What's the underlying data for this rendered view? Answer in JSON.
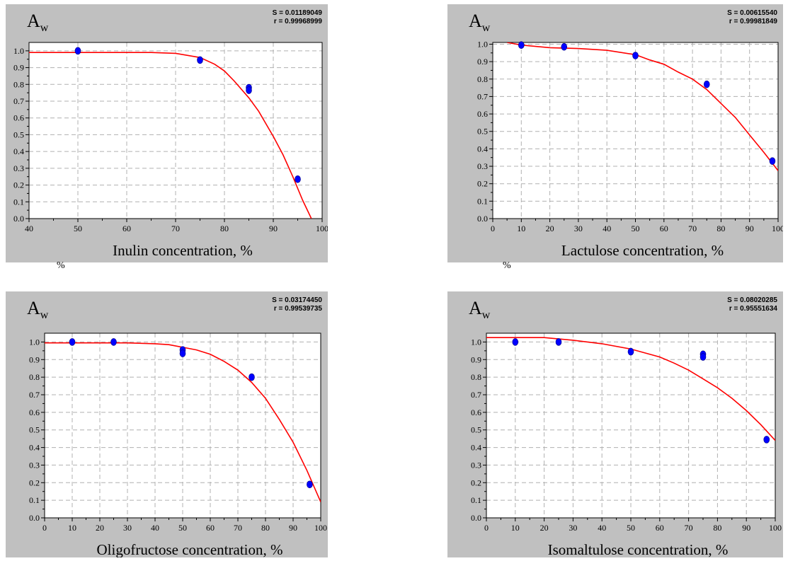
{
  "stray_marks": [
    "%",
    "%"
  ],
  "chart_data": [
    {
      "type": "scatter",
      "ylabel_main": "A",
      "ylabel_sub": "w",
      "xlabel": "Inulin concentration, %",
      "stats": [
        "S = 0.01189049",
        "r = 0.99968999"
      ],
      "xlim": [
        40,
        100
      ],
      "ylim": [
        0.0,
        1.05
      ],
      "xticks": [
        40,
        50,
        60,
        70,
        80,
        90,
        100
      ],
      "xminor": 2,
      "yticks": [
        0.0,
        0.1,
        0.2,
        0.3,
        0.4,
        0.5,
        0.6,
        0.7,
        0.8,
        0.9,
        1.0
      ],
      "ytick_labels": [
        "0.0",
        "0.1",
        "0.2",
        "0.3",
        "0.4",
        "0.5",
        "0.6",
        "0.7",
        "0.8",
        "0.9",
        "1.0"
      ],
      "grid": true,
      "series": [
        {
          "kind": "points",
          "x": [
            50,
            75,
            85,
            85,
            95
          ],
          "y": [
            1.0,
            0.945,
            0.78,
            0.765,
            0.235
          ]
        },
        {
          "kind": "fit",
          "x": [
            40,
            60,
            65,
            70,
            75,
            78,
            80,
            82,
            85,
            87,
            90,
            92,
            94,
            96,
            97.8
          ],
          "y": [
            0.99,
            0.99,
            0.99,
            0.985,
            0.96,
            0.92,
            0.88,
            0.82,
            0.72,
            0.64,
            0.49,
            0.38,
            0.25,
            0.11,
            0.0
          ]
        }
      ],
      "colors": {
        "points": "#0000ff",
        "fit": "#ff0000"
      }
    },
    {
      "type": "scatter",
      "ylabel_main": "A",
      "ylabel_sub": "w",
      "xlabel": "Lactulose concentration, %",
      "stats": [
        "S = 0.00615540",
        "r = 0.99981849"
      ],
      "xlim": [
        0,
        100
      ],
      "ylim": [
        0.0,
        1.01
      ],
      "xticks": [
        0,
        10,
        20,
        30,
        40,
        50,
        60,
        70,
        80,
        90,
        100
      ],
      "xminor": 2,
      "yticks": [
        0.0,
        0.1,
        0.2,
        0.3,
        0.4,
        0.5,
        0.6,
        0.7,
        0.8,
        0.9,
        1.0
      ],
      "ytick_labels": [
        "0.0",
        "0.1",
        "0.2",
        "0.3",
        "0.4",
        "0.5",
        "0.6",
        "0.7",
        "0.8",
        "0.9",
        "1.0"
      ],
      "grid": true,
      "series": [
        {
          "kind": "points",
          "x": [
            10,
            25,
            50,
            75,
            98
          ],
          "y": [
            0.995,
            0.985,
            0.935,
            0.77,
            0.33
          ]
        },
        {
          "kind": "fit",
          "x": [
            5,
            10,
            20,
            30,
            40,
            50,
            55,
            60,
            65,
            70,
            75,
            80,
            85,
            90,
            95,
            100
          ],
          "y": [
            1.01,
            0.995,
            0.98,
            0.975,
            0.965,
            0.94,
            0.91,
            0.885,
            0.84,
            0.8,
            0.74,
            0.66,
            0.58,
            0.48,
            0.38,
            0.275
          ]
        }
      ],
      "colors": {
        "points": "#0000ff",
        "fit": "#ff0000"
      }
    },
    {
      "type": "scatter",
      "ylabel_main": "A",
      "ylabel_sub": "w",
      "xlabel": "Oligofructose concentration, %",
      "stats": [
        "S = 0.03174450",
        "r = 0.99539735"
      ],
      "xlim": [
        0,
        100
      ],
      "ylim": [
        0.0,
        1.05
      ],
      "xticks": [
        0,
        10,
        20,
        30,
        40,
        50,
        60,
        70,
        80,
        90,
        100
      ],
      "xminor": 2,
      "yticks": [
        0.0,
        0.1,
        0.2,
        0.3,
        0.4,
        0.5,
        0.6,
        0.7,
        0.8,
        0.9,
        1.0
      ],
      "ytick_labels": [
        "0.0",
        "0.1",
        "0.2",
        "0.3",
        "0.4",
        "0.5",
        "0.6",
        "0.7",
        "0.8",
        "0.9",
        "1.0"
      ],
      "grid": true,
      "series": [
        {
          "kind": "points",
          "x": [
            10,
            25,
            50,
            50,
            75,
            96
          ],
          "y": [
            1.0,
            1.0,
            0.955,
            0.935,
            0.8,
            0.19
          ]
        },
        {
          "kind": "fit",
          "x": [
            0,
            20,
            30,
            40,
            45,
            50,
            55,
            60,
            65,
            70,
            75,
            80,
            85,
            90,
            95,
            100
          ],
          "y": [
            0.995,
            0.995,
            0.995,
            0.99,
            0.985,
            0.97,
            0.955,
            0.93,
            0.89,
            0.84,
            0.77,
            0.68,
            0.56,
            0.43,
            0.27,
            0.09
          ]
        }
      ],
      "colors": {
        "points": "#0000ff",
        "fit": "#ff0000"
      }
    },
    {
      "type": "scatter",
      "ylabel_main": "A",
      "ylabel_sub": "w",
      "xlabel": "Isomaltulose concentration, %",
      "stats": [
        "S = 0.08020285",
        "r = 0.95551634"
      ],
      "xlim": [
        0,
        100
      ],
      "ylim": [
        0.0,
        1.05
      ],
      "xticks": [
        0,
        10,
        20,
        30,
        40,
        50,
        60,
        70,
        80,
        90,
        100
      ],
      "xminor": 2,
      "yticks": [
        0.0,
        0.1,
        0.2,
        0.3,
        0.4,
        0.5,
        0.6,
        0.7,
        0.8,
        0.9,
        1.0
      ],
      "ytick_labels": [
        "0.0",
        "0.1",
        "0.2",
        "0.3",
        "0.4",
        "0.5",
        "0.6",
        "0.7",
        "0.8",
        "0.9",
        "1.0"
      ],
      "grid": true,
      "series": [
        {
          "kind": "points",
          "x": [
            10,
            25,
            50,
            75,
            75,
            97
          ],
          "y": [
            1.0,
            1.0,
            0.945,
            0.93,
            0.915,
            0.445
          ]
        },
        {
          "kind": "fit",
          "x": [
            0,
            10,
            20,
            30,
            40,
            50,
            60,
            65,
            70,
            75,
            80,
            85,
            90,
            95,
            100
          ],
          "y": [
            1.025,
            1.025,
            1.025,
            1.01,
            0.99,
            0.96,
            0.915,
            0.88,
            0.84,
            0.79,
            0.74,
            0.68,
            0.61,
            0.53,
            0.44
          ]
        }
      ],
      "colors": {
        "points": "#0000ff",
        "fit": "#ff0000"
      }
    }
  ]
}
